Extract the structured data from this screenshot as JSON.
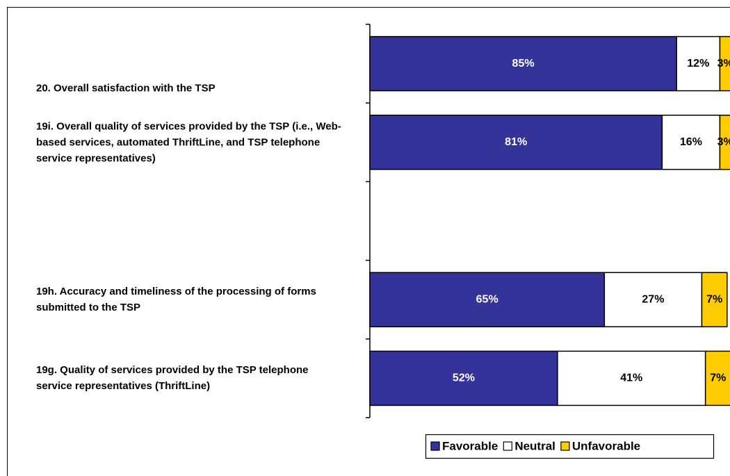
{
  "chart_data": {
    "type": "stacked-barh",
    "categories": [
      "20. Overall satisfaction with the TSP",
      "19i. Overall quality of services provided by the TSP (i.e., Web-based services, automated ThriftLine, and TSP telephone service representatives)",
      null,
      "19h. Accuracy and timeliness of the processing of forms submitted to the TSP",
      "19g. Quality of services provided by the TSP telephone service representatives (ThriftLine)"
    ],
    "series": [
      {
        "name": "Favorable",
        "color": "#333399",
        "values": [
          85,
          81,
          null,
          65,
          52
        ],
        "value_labels": [
          "85%",
          "81%",
          null,
          "65%",
          "52%"
        ]
      },
      {
        "name": "Neutral",
        "color": "#ffffff",
        "values": [
          12,
          16,
          null,
          27,
          41
        ],
        "value_labels": [
          "12%",
          "16%",
          null,
          "27%",
          "41%"
        ]
      },
      {
        "name": "Unfavorable",
        "color": "#ffcc00",
        "values": [
          3,
          3,
          null,
          7,
          7
        ],
        "value_labels": [
          "3%",
          "3%",
          null,
          "7%",
          "7%"
        ]
      }
    ],
    "xlim": [
      0,
      100
    ],
    "legend": "bottom"
  }
}
